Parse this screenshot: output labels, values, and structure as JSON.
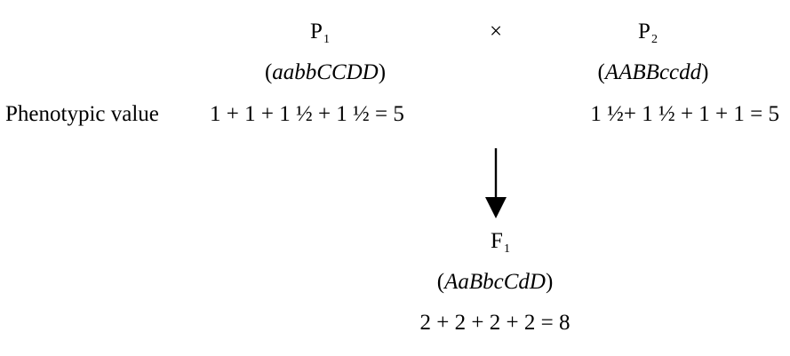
{
  "parents": {
    "p1": {
      "label": "P",
      "sub": "1",
      "genotype_open": "(",
      "genotype": "aabbCCDD",
      "genotype_close": ")",
      "phenotype_expr": "1 + 1 + 1 ½  + 1 ½  = 5"
    },
    "cross_symbol": "×",
    "p2": {
      "label": "P",
      "sub": "2",
      "genotype_open": "(",
      "genotype": "AABBccdd",
      "genotype_close": ")",
      "phenotype_expr": "1 ½+ 1 ½  + 1 + 1 = 5"
    }
  },
  "phenotypic_value_label": "Phenotypic value",
  "offspring": {
    "label": "F",
    "sub": "1",
    "genotype_open": "(",
    "genotype": "AaBbcCdD",
    "genotype_close": ")",
    "phenotype_expr": "2 + 2 + 2 + 2 = 8"
  }
}
